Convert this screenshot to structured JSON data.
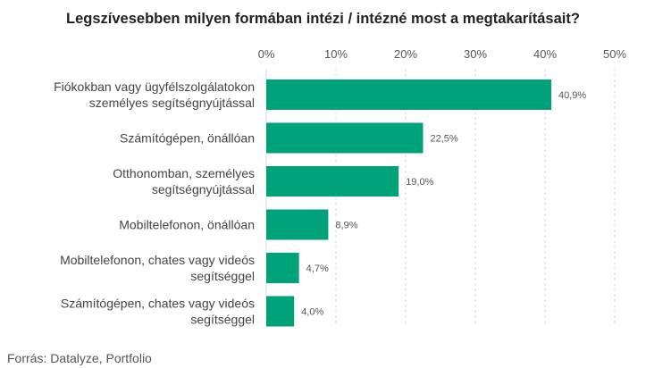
{
  "chart_data": {
    "type": "bar",
    "orientation": "horizontal",
    "title": "Legszívesebben milyen formában intézi / intézné most a megtakarításait?",
    "categories": [
      [
        "Fiókokban vagy ügyfélszolgálatokon",
        "személyes segítségnyújtással"
      ],
      [
        "Számítógépen, önállóan"
      ],
      [
        "Otthonomban, személyes",
        "segítségnyújtással"
      ],
      [
        "Mobiltelefonon, önállóan"
      ],
      [
        "Mobiltelefonon, chates vagy videós",
        "segítséggel"
      ],
      [
        "Számítógépen, chates vagy videós",
        "segítséggel"
      ]
    ],
    "values": [
      40.9,
      22.5,
      19.0,
      8.9,
      4.7,
      4.0
    ],
    "value_labels": [
      "40,9%",
      "22,5%",
      "19,0%",
      "8,9%",
      "4,7%",
      "4,0%"
    ],
    "x_ticks": [
      0,
      10,
      20,
      30,
      40,
      50
    ],
    "x_tick_labels": [
      "0%",
      "10%",
      "20%",
      "30%",
      "40%",
      "50%"
    ],
    "xlim": [
      0,
      50
    ],
    "axis_position": "top",
    "grid": true,
    "legend": "none",
    "bar_color": "#00a27a"
  },
  "source": "Forrás: Datalyze, Portfolio"
}
